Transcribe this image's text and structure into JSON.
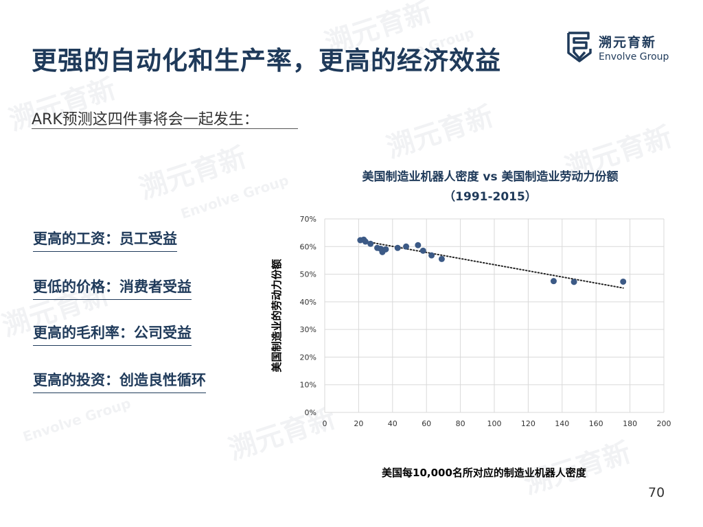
{
  "slide": {
    "title": "更强的自动化和生产率，更高的经济效益",
    "subtitle": "ARK预测这四件事将会一起发生：",
    "benefits": [
      "更高的工资：员工受益",
      "更低的价格：消费者受益",
      "更高的毛利率：公司受益",
      "更高的投资：创造良性循环"
    ],
    "page_number": "70"
  },
  "logo": {
    "name_cn": "溯元育新",
    "name_en": "Envolve Group",
    "icon": "envolve-logo-icon"
  },
  "watermark": {
    "cn": "溯元育新",
    "en": "Envolve Group"
  },
  "colors": {
    "brand": "#1f3a5a",
    "marker": "#3c5a86",
    "grid": "#d9d9d9"
  },
  "chart_data": {
    "type": "scatter",
    "title_line1": "美国制造业机器人密度 vs 美国制造业劳动力份额",
    "title_line2": "（1991-2015）",
    "xlabel": "美国每10,000名所对应的制造业机器人密度",
    "ylabel": "美国制造业的劳动力份额",
    "xlim": [
      0,
      200
    ],
    "ylim": [
      0,
      70
    ],
    "x_ticks": [
      "0",
      "20",
      "40",
      "60",
      "80",
      "100",
      "120",
      "140",
      "160",
      "180",
      "200"
    ],
    "y_ticks": [
      "0%",
      "10%",
      "20%",
      "30%",
      "40%",
      "50%",
      "60%",
      "70%"
    ],
    "grid": true,
    "trendline": {
      "style": "dotted",
      "from": [
        20,
        62.3
      ],
      "to": [
        176,
        45
      ]
    },
    "points": [
      {
        "x": 21,
        "y": 62.3
      },
      {
        "x": 23,
        "y": 62.5
      },
      {
        "x": 24,
        "y": 61.8
      },
      {
        "x": 27,
        "y": 61.0
      },
      {
        "x": 31,
        "y": 59.5
      },
      {
        "x": 33,
        "y": 59.2
      },
      {
        "x": 34,
        "y": 58.0
      },
      {
        "x": 36,
        "y": 59.0
      },
      {
        "x": 43,
        "y": 59.5
      },
      {
        "x": 48,
        "y": 60.0
      },
      {
        "x": 55,
        "y": 60.5
      },
      {
        "x": 58,
        "y": 58.5
      },
      {
        "x": 63,
        "y": 56.8
      },
      {
        "x": 69,
        "y": 55.5
      },
      {
        "x": 135,
        "y": 47.5
      },
      {
        "x": 147,
        "y": 47.2
      },
      {
        "x": 176,
        "y": 47.3
      }
    ]
  }
}
